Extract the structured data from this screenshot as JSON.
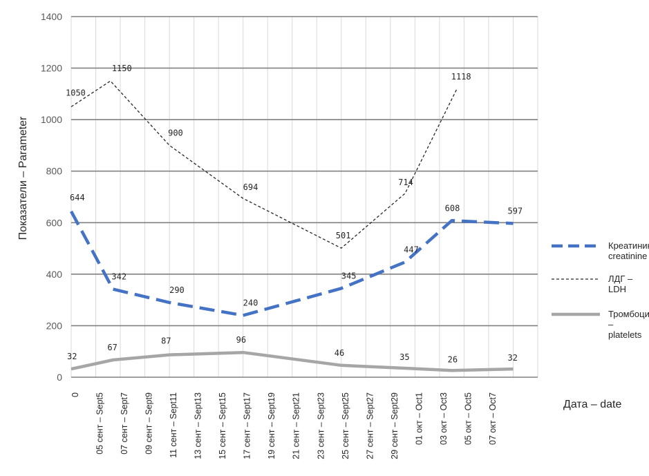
{
  "chart_data": {
    "type": "line",
    "title": "",
    "ylabel": "Показатели – Parameter",
    "xlabel": "Дата – date",
    "ylim": [
      0,
      1400
    ],
    "yticks": [
      0,
      200,
      400,
      600,
      800,
      1000,
      1200,
      1400
    ],
    "grid": true,
    "legend_placement": "right",
    "categories": [
      "0",
      "05 сент – Sept5",
      "07 сент – Sept7",
      "09 сент – Sept9",
      "11 сент – Sept11",
      "13 сент – Sept13",
      "15 сент – Sept15",
      "17 сент – Sept17",
      "19 сент – Sept19",
      "21 сент – Sept21",
      "23 сент – Sept23",
      "25 сент – Sept25",
      "27 сент – Sept27",
      "29 сент – Sept29",
      "01 окт – Oct1",
      "03 окт – Oct3",
      "05 окт – Oct5",
      "07 окт – Oct7"
    ],
    "series": [
      {
        "name": "Креатинин – creatinine",
        "legend_lines": [
          "Креатинин –",
          "creatinine"
        ],
        "color": "#4472c4",
        "style": "dashed-thick",
        "points": [
          [
            0,
            644
          ],
          [
            1.7,
            342
          ],
          [
            4,
            290
          ],
          [
            7,
            240
          ],
          [
            11,
            345
          ],
          [
            13.6,
            447
          ],
          [
            15.5,
            608
          ],
          [
            18,
            597
          ]
        ],
        "labels": [
          "644",
          "342",
          "290",
          "240",
          "345",
          "447",
          "608",
          "597"
        ]
      },
      {
        "name": "ЛДГ – LDH",
        "legend_lines": [
          "ЛДГ –",
          "LDH"
        ],
        "color": "#262626",
        "style": "dashed-thin",
        "points": [
          [
            0,
            1050
          ],
          [
            1.6,
            1150
          ],
          [
            4,
            900
          ],
          [
            7,
            694
          ],
          [
            11,
            501
          ],
          [
            13.6,
            714
          ],
          [
            15.7,
            1118
          ]
        ],
        "labels": [
          "1050",
          "1150",
          "900",
          "694",
          "501",
          "714",
          "1118"
        ]
      },
      {
        "name": "Тромбоциты – platelets",
        "legend_lines": [
          "Тромбоциты",
          "–",
          "platelets"
        ],
        "color": "#a6a6a6",
        "style": "solid-thick",
        "points": [
          [
            0,
            32
          ],
          [
            1.7,
            67
          ],
          [
            4,
            87
          ],
          [
            7,
            96
          ],
          [
            11,
            46
          ],
          [
            13.6,
            35
          ],
          [
            15.5,
            26
          ],
          [
            18,
            32
          ]
        ],
        "labels": [
          "32",
          "67",
          "87",
          "96",
          "46",
          "35",
          "26",
          "32"
        ]
      }
    ]
  }
}
